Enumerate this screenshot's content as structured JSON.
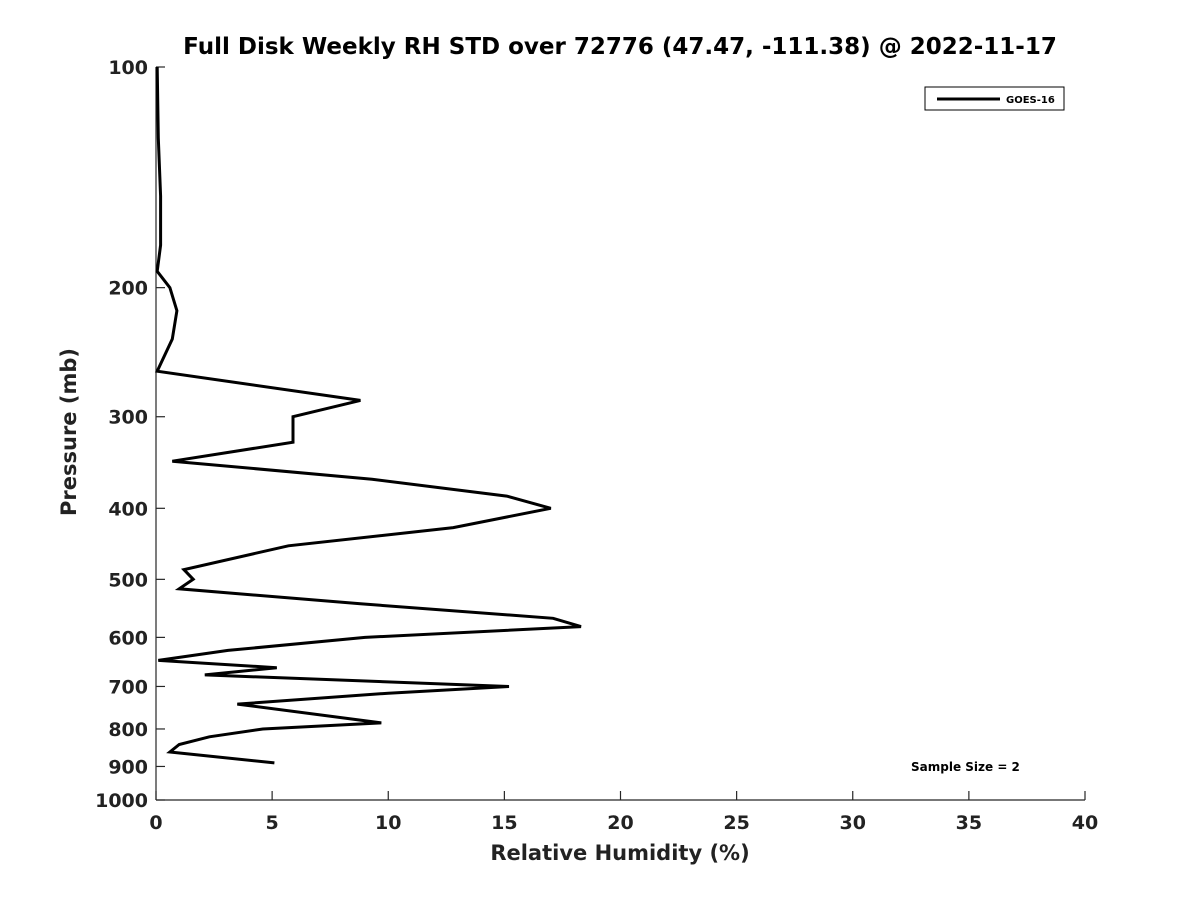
{
  "chart_data": {
    "type": "line",
    "title": "Full Disk Weekly RH STD over 72776 (47.47, -111.38) @ 2022-11-17",
    "xlabel": "Relative Humidity (%)",
    "ylabel": "Pressure (mb)",
    "xlim": [
      0,
      40
    ],
    "ylim": [
      100,
      1000
    ],
    "y_scale": "log",
    "y_reversed": true,
    "x_ticks": [
      0,
      5,
      10,
      15,
      20,
      25,
      30,
      35,
      40
    ],
    "y_ticks": [
      100,
      200,
      300,
      400,
      500,
      600,
      700,
      800,
      900,
      1000
    ],
    "x_tick_labels": [
      "0",
      "5",
      "10",
      "15",
      "20",
      "25",
      "30",
      "35",
      "40"
    ],
    "y_tick_labels": [
      "100",
      "200",
      "300",
      "400",
      "500",
      "600",
      "700",
      "800",
      "900",
      "1000"
    ],
    "grid": false,
    "legend": {
      "position": "top-right",
      "entries": [
        "GOES-16"
      ]
    },
    "annotation": "Sample Size = 2",
    "series": [
      {
        "name": "GOES-16",
        "color": "#000000",
        "points": [
          [
            0.05,
            100
          ],
          [
            0.1,
            125
          ],
          [
            0.2,
            150
          ],
          [
            0.2,
            175
          ],
          [
            0.05,
            190
          ],
          [
            0.6,
            200
          ],
          [
            0.9,
            215
          ],
          [
            0.7,
            235
          ],
          [
            0.05,
            260
          ],
          [
            8.8,
            285
          ],
          [
            5.9,
            300
          ],
          [
            5.9,
            325
          ],
          [
            0.7,
            345
          ],
          [
            9.3,
            365
          ],
          [
            15.1,
            385
          ],
          [
            17.0,
            400
          ],
          [
            12.8,
            425
          ],
          [
            5.7,
            450
          ],
          [
            1.2,
            485
          ],
          [
            1.6,
            500
          ],
          [
            1.0,
            515
          ],
          [
            8.8,
            540
          ],
          [
            17.1,
            565
          ],
          [
            18.3,
            580
          ],
          [
            9.0,
            600
          ],
          [
            3.1,
            625
          ],
          [
            0.1,
            645
          ],
          [
            5.2,
            660
          ],
          [
            2.1,
            675
          ],
          [
            15.2,
            700
          ],
          [
            10.0,
            715
          ],
          [
            3.5,
            740
          ],
          [
            9.7,
            785
          ],
          [
            4.6,
            800
          ],
          [
            2.3,
            820
          ],
          [
            1.0,
            840
          ],
          [
            0.6,
            860
          ],
          [
            5.1,
            890
          ]
        ]
      }
    ]
  }
}
